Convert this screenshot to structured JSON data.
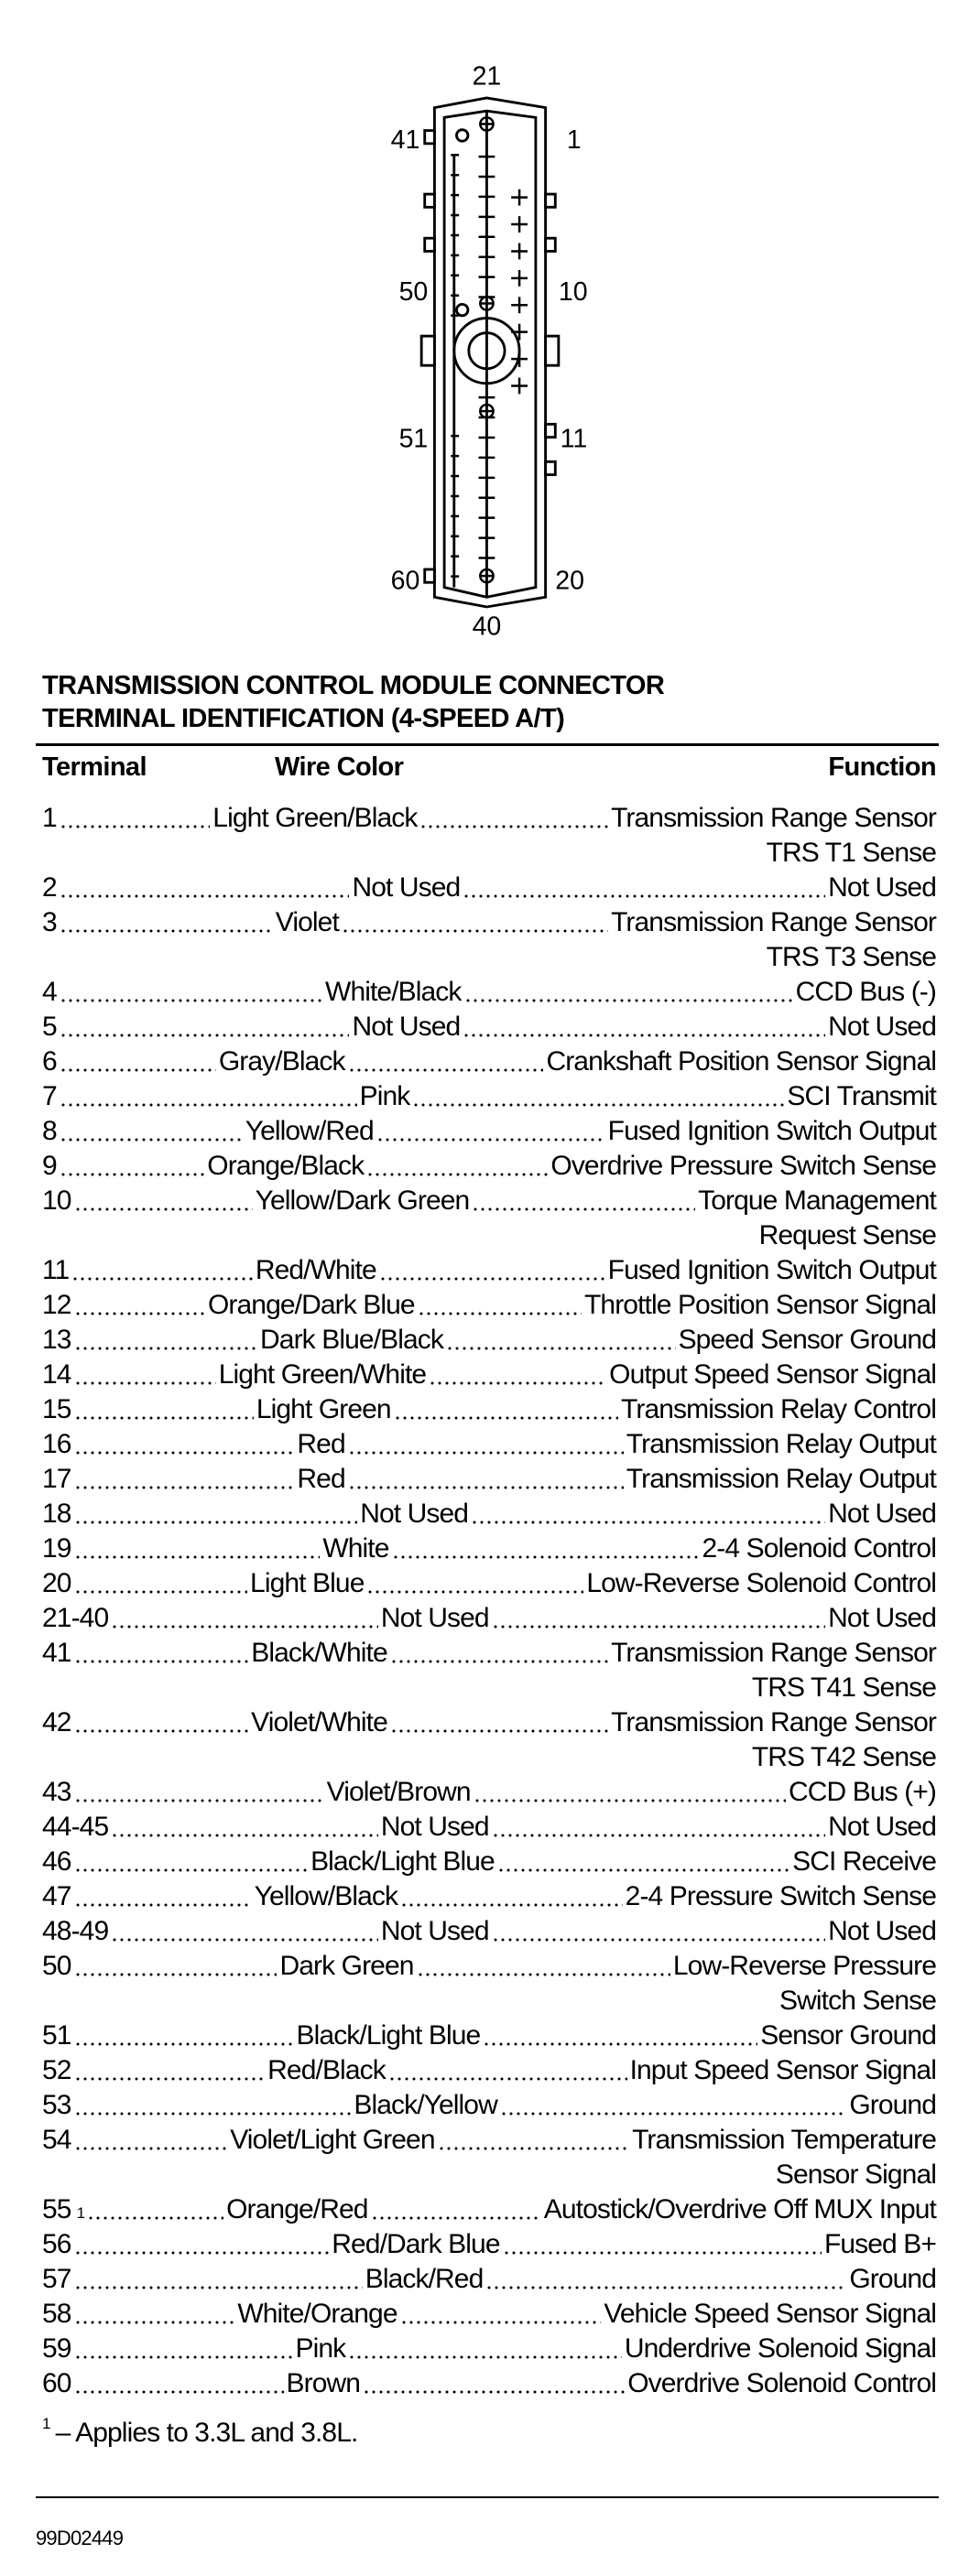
{
  "diagram": {
    "pin_labels": {
      "top": "21",
      "bottom": "40",
      "left": [
        "41",
        "50",
        "51",
        "60"
      ],
      "right": [
        "1",
        "10",
        "11",
        "20"
      ]
    }
  },
  "title": {
    "line1": "TRANSMISSION CONTROL MODULE CONNECTOR",
    "line2": "TERMINAL IDENTIFICATION (4-SPEED A/T)"
  },
  "table": {
    "headers": {
      "terminal": "Terminal",
      "wire_color": "Wire Color",
      "function": "Function"
    },
    "rows": [
      {
        "terminal": "1",
        "color": "Light Green/Black",
        "function": [
          "Transmission Range Sensor",
          "TRS T1 Sense"
        ]
      },
      {
        "terminal": "2",
        "color": "Not Used",
        "function": [
          "Not Used"
        ]
      },
      {
        "terminal": "3",
        "color": "Violet",
        "function": [
          "Transmission Range Sensor",
          "TRS T3 Sense"
        ]
      },
      {
        "terminal": "4",
        "color": "White/Black",
        "function": [
          "CCD Bus (-)"
        ]
      },
      {
        "terminal": "5",
        "color": "Not Used",
        "function": [
          "Not Used"
        ]
      },
      {
        "terminal": "6",
        "color": "Gray/Black",
        "function": [
          "Crankshaft Position Sensor Signal"
        ]
      },
      {
        "terminal": "7",
        "color": "Pink",
        "function": [
          "SCI Transmit"
        ]
      },
      {
        "terminal": "8",
        "color": "Yellow/Red",
        "function": [
          "Fused Ignition Switch Output"
        ]
      },
      {
        "terminal": "9",
        "color": "Orange/Black",
        "function": [
          "Overdrive Pressure Switch Sense"
        ]
      },
      {
        "terminal": "10",
        "color": "Yellow/Dark Green",
        "function": [
          "Torque Management",
          "Request Sense"
        ]
      },
      {
        "terminal": "11",
        "color": "Red/White",
        "function": [
          "Fused Ignition Switch Output"
        ]
      },
      {
        "terminal": "12",
        "color": "Orange/Dark Blue",
        "function": [
          "Throttle Position Sensor Signal"
        ]
      },
      {
        "terminal": "13",
        "color": "Dark Blue/Black",
        "function": [
          "Speed Sensor Ground"
        ]
      },
      {
        "terminal": "14",
        "color": "Light Green/White",
        "function": [
          "Output Speed Sensor Signal"
        ]
      },
      {
        "terminal": "15",
        "color": "Light Green",
        "function": [
          "Transmission Relay Control"
        ]
      },
      {
        "terminal": "16",
        "color": "Red",
        "function": [
          "Transmission Relay Output"
        ]
      },
      {
        "terminal": "17",
        "color": "Red",
        "function": [
          "Transmission Relay Output"
        ]
      },
      {
        "terminal": "18",
        "color": "Not Used",
        "function": [
          "Not Used"
        ]
      },
      {
        "terminal": "19",
        "color": "White",
        "function": [
          "2-4 Solenoid Control"
        ]
      },
      {
        "terminal": "20",
        "color": "Light Blue",
        "function": [
          "Low-Reverse Solenoid Control"
        ]
      },
      {
        "terminal": "21-40",
        "color": "Not Used",
        "function": [
          "Not Used"
        ]
      },
      {
        "terminal": "41",
        "color": "Black/White",
        "function": [
          "Transmission Range Sensor",
          "TRS T41 Sense"
        ]
      },
      {
        "terminal": "42",
        "color": "Violet/White",
        "function": [
          "Transmission Range Sensor",
          "TRS T42 Sense"
        ]
      },
      {
        "terminal": "43",
        "color": "Violet/Brown",
        "function": [
          "CCD Bus (+)"
        ]
      },
      {
        "terminal": "44-45",
        "color": "Not Used",
        "function": [
          "Not Used"
        ]
      },
      {
        "terminal": "46",
        "color": "Black/Light Blue",
        "function": [
          "SCI Receive"
        ]
      },
      {
        "terminal": "47",
        "color": "Yellow/Black",
        "function": [
          "2-4 Pressure Switch Sense"
        ]
      },
      {
        "terminal": "48-49",
        "color": "Not Used",
        "function": [
          "Not Used"
        ]
      },
      {
        "terminal": "50",
        "color": "Dark Green",
        "function": [
          "Low-Reverse Pressure",
          "Switch Sense"
        ]
      },
      {
        "terminal": "51",
        "color": "Black/Light Blue",
        "function": [
          "Sensor Ground"
        ]
      },
      {
        "terminal": "52",
        "color": "Red/Black",
        "function": [
          "Input Speed Sensor Signal"
        ]
      },
      {
        "terminal": "53",
        "color": "Black/Yellow",
        "function": [
          "Ground"
        ]
      },
      {
        "terminal": "54",
        "color": "Violet/Light Green",
        "function": [
          "Transmission Temperature",
          "Sensor Signal"
        ]
      },
      {
        "terminal": "55",
        "note": "1",
        "color": "Orange/Red",
        "function": [
          "Autostick/Overdrive Off MUX Input"
        ]
      },
      {
        "terminal": "56",
        "color": "Red/Dark Blue",
        "function": [
          "Fused B+"
        ]
      },
      {
        "terminal": "57",
        "color": "Black/Red",
        "function": [
          "Ground"
        ]
      },
      {
        "terminal": "58",
        "color": "White/Orange",
        "function": [
          "Vehicle Speed Sensor Signal"
        ]
      },
      {
        "terminal": "59",
        "color": "Pink",
        "function": [
          "Underdrive Solenoid Signal"
        ]
      },
      {
        "terminal": "60",
        "color": "Brown",
        "function": [
          "Overdrive Solenoid Control"
        ]
      }
    ]
  },
  "footnote": {
    "mark": "1",
    "text": "– Applies to 3.3L and 3.8L."
  },
  "figure_id": "99D02449"
}
